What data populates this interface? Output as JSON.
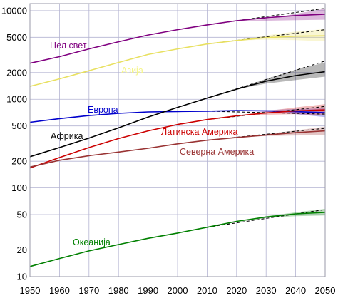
{
  "chart_data": {
    "type": "line",
    "y_scale": "log",
    "xlim": [
      1950,
      2050
    ],
    "ylim": [
      10,
      12000
    ],
    "grid": true,
    "x_ticks": [
      "1950",
      "1960",
      "1970",
      "1980",
      "1990",
      "2000",
      "2010",
      "2020",
      "2030",
      "2040",
      "2050"
    ],
    "y_ticks": [
      {
        "value": 10,
        "label": "10"
      },
      {
        "value": 20,
        "label": "20"
      },
      {
        "value": 50,
        "label": "50"
      },
      {
        "value": 100,
        "label": "100"
      },
      {
        "value": 200,
        "label": "200"
      },
      {
        "value": 500,
        "label": "500"
      },
      {
        "value": 1000,
        "label": "1000"
      },
      {
        "value": 2000,
        "label": "2000"
      },
      {
        "value": 5000,
        "label": "5000"
      },
      {
        "value": 10000,
        "label": "10000"
      }
    ],
    "series": [
      {
        "name": "Цел свет",
        "color": "#800080",
        "label_color": "#800080",
        "x": [
          1950,
          1960,
          1970,
          1980,
          1990,
          2000,
          2010,
          2020,
          2030,
          2040,
          2050
        ],
        "values": [
          2550,
          3020,
          3700,
          4450,
          5300,
          6100,
          6900,
          7700,
          8300,
          8800,
          9100
        ],
        "proj_high": [
          8000,
          9200,
          10500
        ],
        "proj_low": [
          7700,
          7800,
          7900
        ],
        "dashed_end": 10600
      },
      {
        "name": "Азија",
        "color": "#e8e060",
        "label_color": "#f5f58a",
        "x": [
          1950,
          1960,
          1970,
          1980,
          1990,
          2000,
          2010,
          2020,
          2030,
          2040,
          2050
        ],
        "values": [
          1400,
          1700,
          2100,
          2600,
          3200,
          3700,
          4200,
          4600,
          4950,
          5150,
          5200
        ],
        "proj_high": [
          5250,
          5800,
          6200
        ],
        "proj_low": [
          4700,
          4650,
          4500
        ],
        "dashed_end": 6100
      },
      {
        "name": "Европа",
        "color": "#0000cc",
        "label_color": "#0000cc",
        "x": [
          1950,
          1960,
          1970,
          1980,
          1990,
          2000,
          2010,
          2020,
          2030,
          2040,
          2050
        ],
        "values": [
          550,
          605,
          655,
          693,
          720,
          728,
          735,
          745,
          740,
          725,
          705
        ],
        "proj_high": [
          755,
          775,
          790
        ],
        "proj_low": [
          725,
          680,
          630
        ],
        "dashed_end": 680
      },
      {
        "name": "Африка",
        "color": "#000000",
        "label_color": "#000000",
        "x": [
          1950,
          1960,
          1970,
          1980,
          1990,
          2000,
          2010,
          2020,
          2030,
          2040,
          2050
        ],
        "values": [
          225,
          285,
          365,
          475,
          630,
          810,
          1030,
          1300,
          1600,
          1850,
          2050
        ],
        "proj_high": [
          1700,
          2150,
          2600
        ],
        "proj_low": [
          1500,
          1650,
          1800
        ],
        "dashed_end": 2700
      },
      {
        "name": "Латинска Америка",
        "color": "#cc0000",
        "label_color": "#cc0000",
        "x": [
          1950,
          1960,
          1970,
          1980,
          1990,
          2000,
          2010,
          2020,
          2030,
          2040,
          2050
        ],
        "values": [
          168,
          220,
          285,
          360,
          440,
          520,
          590,
          650,
          700,
          740,
          760
        ],
        "proj_high": [
          735,
          810,
          880
        ],
        "proj_low": [
          670,
          680,
          660
        ],
        "dashed_end": 830
      },
      {
        "name": "Северна Америка",
        "color": "#993333",
        "label_color": "#993333",
        "x": [
          1950,
          1960,
          1970,
          1980,
          1990,
          2000,
          2010,
          2020,
          2030,
          2040,
          2050
        ],
        "values": [
          172,
          205,
          231,
          254,
          280,
          314,
          345,
          370,
          395,
          420,
          440
        ],
        "proj_high": [
          405,
          445,
          490
        ],
        "proj_low": [
          385,
          390,
          395
        ],
        "dashed_end": 470
      },
      {
        "name": "Океанија",
        "color": "#008000",
        "label_color": "#008000",
        "x": [
          1950,
          1960,
          1970,
          1980,
          1990,
          2000,
          2010,
          2020,
          2030,
          2040,
          2050
        ],
        "values": [
          13,
          16,
          19.5,
          23,
          27,
          31,
          36,
          42,
          47,
          51,
          53
        ],
        "proj_high": [
          48,
          53,
          58
        ],
        "proj_low": [
          46,
          48,
          49
        ],
        "dashed_end": 57
      }
    ]
  }
}
